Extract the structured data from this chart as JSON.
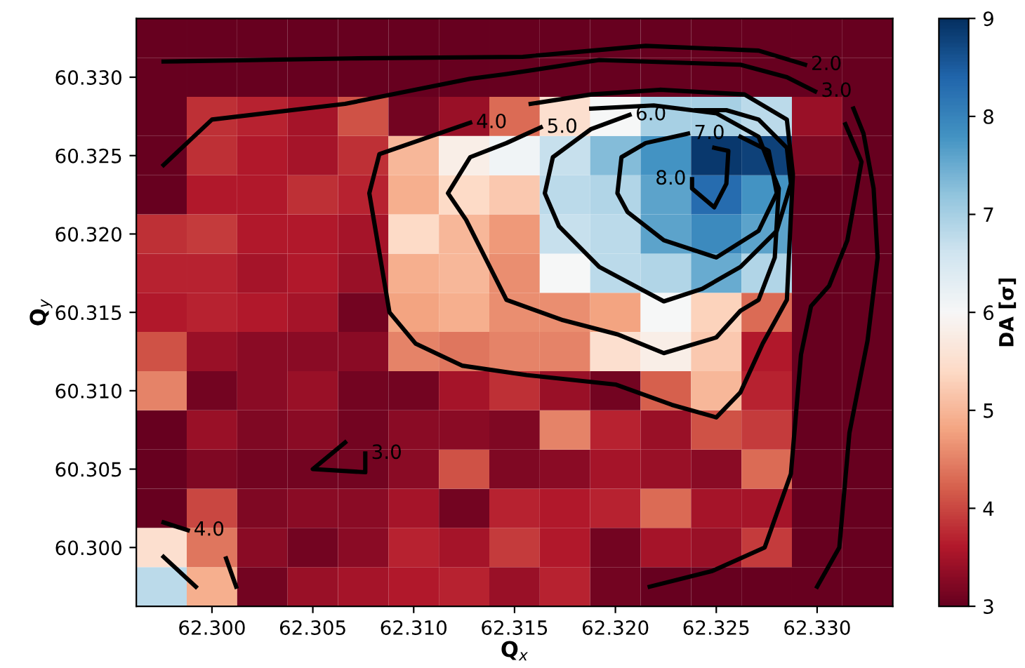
{
  "chart_data": {
    "type": "heatmap",
    "xlabel": "Q$_{x}$",
    "ylabel": "Q$_{y}$",
    "clabel": "DA [σ]",
    "xlim": [
      62.29625,
      62.33375
    ],
    "ylim": [
      60.29625,
      60.33375
    ],
    "xticks": [
      {
        "value": 62.3,
        "label": "62.300"
      },
      {
        "value": 62.305,
        "label": "62.305"
      },
      {
        "value": 62.31,
        "label": "62.310"
      },
      {
        "value": 62.315,
        "label": "62.315"
      },
      {
        "value": 62.32,
        "label": "62.320"
      },
      {
        "value": 62.325,
        "label": "62.325"
      },
      {
        "value": 62.33,
        "label": "62.330"
      }
    ],
    "yticks": [
      {
        "value": 60.3,
        "label": "60.300"
      },
      {
        "value": 60.305,
        "label": "60.305"
      },
      {
        "value": 60.31,
        "label": "60.310"
      },
      {
        "value": 60.315,
        "label": "60.315"
      },
      {
        "value": 60.32,
        "label": "60.320"
      },
      {
        "value": 60.325,
        "label": "60.325"
      },
      {
        "value": 60.33,
        "label": "60.330"
      }
    ],
    "clim": [
      3,
      9
    ],
    "cticks": [
      3,
      4,
      5,
      6,
      7,
      8,
      9
    ],
    "cells": [
      [
        3,
        3,
        3,
        3,
        3,
        3,
        3,
        3,
        3,
        3,
        3,
        3,
        3,
        3,
        3
      ],
      [
        3,
        3,
        3,
        3,
        3,
        3,
        3,
        3,
        3,
        3,
        3,
        3,
        3,
        3,
        3
      ],
      [
        3,
        3.8,
        3.7,
        3.5,
        4.1,
        3.1,
        3.4,
        4.3,
        5.5,
        6.0,
        7.0,
        7.0,
        6.8,
        3.4,
        3
      ],
      [
        3,
        3.8,
        3.6,
        3.5,
        3.8,
        5.0,
        5.8,
        6.1,
        6.7,
        7.3,
        7.8,
        8.9,
        8.8,
        3.2,
        3
      ],
      [
        3,
        3.6,
        3.6,
        3.8,
        3.7,
        4.9,
        5.4,
        5.2,
        6.8,
        6.9,
        7.6,
        8.3,
        7.8,
        3,
        3
      ],
      [
        3.8,
        3.9,
        3.6,
        3.6,
        3.5,
        5.4,
        5.0,
        4.7,
        6.7,
        6.8,
        7.6,
        7.9,
        7.6,
        3,
        3
      ],
      [
        3.7,
        3.7,
        3.5,
        3.6,
        3.4,
        4.9,
        5.0,
        4.6,
        6.0,
        6.8,
        6.9,
        7.5,
        6.9,
        3,
        3
      ],
      [
        3.6,
        3.7,
        3.6,
        3.5,
        3.1,
        4.8,
        4.9,
        4.6,
        4.6,
        4.8,
        6.0,
        5.3,
        4.3,
        3,
        3
      ],
      [
        4.1,
        3.4,
        3.3,
        3.3,
        3.3,
        4.5,
        4.4,
        4.5,
        4.5,
        5.5,
        5.8,
        5.2,
        3.6,
        3,
        3
      ],
      [
        4.5,
        3.1,
        3.3,
        3.4,
        3.1,
        3.1,
        3.5,
        3.8,
        3.4,
        3.1,
        4.2,
        5.0,
        3.7,
        3,
        3
      ],
      [
        3,
        3.4,
        3.2,
        3.3,
        3.1,
        3.3,
        3.3,
        3.2,
        4.5,
        3.7,
        3.4,
        4.1,
        3.9,
        3,
        3
      ],
      [
        3,
        3.2,
        3.1,
        3.1,
        3.1,
        3.3,
        4.1,
        3.2,
        3.3,
        3.5,
        3.4,
        3.3,
        4.3,
        3,
        3
      ],
      [
        3,
        4.0,
        3.2,
        3.3,
        3.3,
        3.5,
        3.1,
        3.7,
        3.6,
        3.7,
        4.3,
        3.5,
        3.5,
        3,
        3
      ],
      [
        5.5,
        4.4,
        3.3,
        3.1,
        3.3,
        3.7,
        3.5,
        3.9,
        3.6,
        3.1,
        3.5,
        3.4,
        3.9,
        3,
        3
      ],
      [
        6.8,
        4.9,
        3.1,
        3.4,
        3.5,
        3.6,
        3.7,
        3.4,
        3.7,
        3.1,
        3,
        3,
        3,
        3,
        3
      ]
    ],
    "series": [
      {
        "type": "line",
        "color": "#000000",
        "x": [
          62.2976,
          62.3069,
          62.3154,
          62.3215,
          62.3271,
          62.3294,
          null,
          62.3318,
          62.3323,
          62.3328,
          62.333,
          62.3325,
          62.3316,
          62.3311,
          62.33
        ],
        "values": [
          60.331,
          60.3312,
          60.3313,
          60.332,
          60.3317,
          60.3308,
          null,
          60.328,
          60.3264,
          60.3229,
          60.3185,
          60.3132,
          60.3073,
          60.3,
          60.2975
        ]
      },
      {
        "type": "line",
        "color": "#000000",
        "x": [
          62.2976,
          62.3,
          62.3066,
          62.3128,
          62.3146,
          62.3192,
          62.3262,
          62.3285,
          62.3299,
          null,
          62.3314,
          62.3322,
          62.3315,
          62.3306,
          62.3297,
          62.3292,
          62.3287,
          62.3274,
          62.3248,
          62.3217
        ],
        "values": [
          60.3244,
          60.3273,
          60.3283,
          60.3299,
          60.3302,
          60.3311,
          60.3308,
          60.33,
          60.3291,
          null,
          60.327,
          60.3246,
          60.3196,
          60.3167,
          60.3154,
          60.3123,
          60.3047,
          60.3,
          60.2985,
          60.2975
        ]
      },
      {
        "type": "line",
        "color": "#000000",
        "x": [
          62.3158,
          62.3188,
          62.3222,
          62.3264,
          62.3285,
          62.3288,
          62.3286,
          62.3285,
          62.3273,
          62.3262,
          62.325,
          62.3228,
          62.32,
          62.3156,
          62.3124,
          62.3101,
          62.3088,
          62.3078,
          62.3083,
          62.3128
        ],
        "values": [
          60.3283,
          60.3289,
          60.3292,
          60.3289,
          60.3273,
          60.3238,
          60.3185,
          60.3158,
          60.313,
          60.3099,
          60.3083,
          60.3091,
          60.3104,
          60.311,
          60.3116,
          60.313,
          60.315,
          60.3226,
          60.3251,
          60.3271
        ]
      },
      {
        "type": "line",
        "color": "#000000",
        "x": [
          62.3188,
          62.3219,
          62.325,
          62.3271,
          62.3281,
          62.3279,
          62.3271,
          62.3262,
          62.325,
          62.3224,
          62.3201,
          62.3174,
          62.3146,
          62.3126,
          62.3117,
          62.3128,
          62.3146,
          62.3163
        ],
        "values": [
          60.328,
          60.3282,
          60.3277,
          60.3262,
          60.3229,
          60.3185,
          60.3158,
          60.3151,
          60.3134,
          60.3124,
          60.3136,
          60.3145,
          60.3158,
          60.3209,
          60.3226,
          60.3249,
          60.3258,
          60.3268
        ]
      },
      {
        "type": "line",
        "color": "#000000",
        "x": [
          62.324,
          62.3255,
          62.3271,
          62.3285,
          62.3287,
          62.328,
          62.3262,
          62.3243,
          62.3224,
          62.3192,
          62.3172,
          62.3165,
          62.3169,
          62.3188,
          62.3207
        ],
        "values": [
          60.3279,
          60.3279,
          60.3273,
          60.3255,
          60.3232,
          60.3202,
          60.3179,
          60.3165,
          60.3157,
          60.3179,
          60.3205,
          60.3226,
          60.3249,
          60.3267,
          60.3276
        ]
      },
      {
        "type": "line",
        "color": "#000000",
        "x": [
          62.3262,
          62.3276,
          62.328,
          62.3271,
          62.325,
          62.3224,
          62.3206,
          62.3201,
          62.3203,
          62.3215,
          62.3236
        ],
        "values": [
          60.3262,
          60.3253,
          60.3226,
          60.3202,
          60.3185,
          60.3196,
          60.3214,
          60.3226,
          60.3249,
          60.3258,
          60.3264
        ]
      },
      {
        "type": "line",
        "color": "#000000",
        "x": [
          62.3238,
          62.3238,
          62.3249,
          62.3255,
          62.3256,
          62.3249
        ],
        "values": [
          60.3235,
          60.3229,
          60.3217,
          60.3232,
          60.3253,
          60.3255
        ]
      },
      {
        "type": "line",
        "color": "#000000",
        "x": [
          62.3066,
          62.305,
          62.3076,
          62.3076
        ],
        "values": [
          60.3067,
          60.305,
          60.3048,
          60.306
        ]
      },
      {
        "type": "line",
        "color": "#000000",
        "x": [
          62.2976,
          62.2988,
          null,
          62.3007,
          62.3012
        ],
        "values": [
          60.3016,
          60.3011,
          null,
          60.2993,
          60.2975
        ]
      },
      {
        "type": "line",
        "color": "#000000",
        "x": [
          62.2976,
          62.2992
        ],
        "values": [
          60.2994,
          60.2975
        ]
      }
    ],
    "annotations": [
      {
        "text": "2.0",
        "x": 62.3294,
        "y": 60.3308
      },
      {
        "text": "3.0",
        "x": 62.3299,
        "y": 60.3291
      },
      {
        "text": "4.0",
        "x": 62.3128,
        "y": 60.3271
      },
      {
        "text": "5.0",
        "x": 62.3163,
        "y": 60.3268
      },
      {
        "text": "6.0",
        "x": 62.3207,
        "y": 60.3276
      },
      {
        "text": "7.0",
        "x": 62.3236,
        "y": 60.3264
      },
      {
        "text": "8.0",
        "x": 62.3238,
        "y": 60.3235
      },
      {
        "text": "3.0",
        "x": 62.3076,
        "y": 60.306
      },
      {
        "text": "4.0",
        "x": 62.2988,
        "y": 60.3011
      }
    ],
    "grid": false,
    "line_style": "solid",
    "marker": "none"
  }
}
